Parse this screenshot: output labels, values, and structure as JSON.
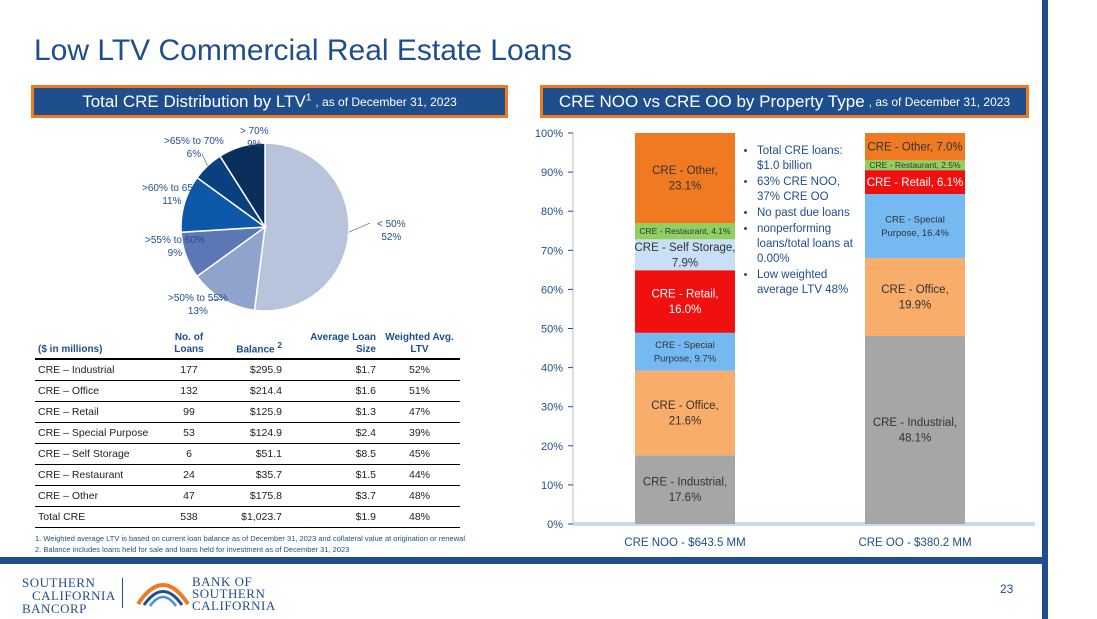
{
  "title": "Low LTV Commercial Real Estate Loans",
  "left_header": {
    "main": "Total CRE Distribution by LTV",
    "sup": "1",
    "sub": ", as of December 31, 2023"
  },
  "right_header": {
    "main": "CRE NOO vs CRE OO by Property Type",
    "sub": ", as of December 31, 2023"
  },
  "pie": {
    "slices": [
      {
        "label": "< 50%",
        "pct": "52%",
        "value": 52,
        "color": "#b8c4dc"
      },
      {
        "label": ">50% to 55%",
        "pct": "13%",
        "value": 13,
        "color": "#8fa3cd"
      },
      {
        "label": ">55% to 60%",
        "pct": "9%",
        "value": 9,
        "color": "#5b77b6"
      },
      {
        "label": ">60% to 65%",
        "pct": "11%",
        "value": 11,
        "color": "#0d58a8"
      },
      {
        "label": ">65% to 70%",
        "pct": "6%",
        "value": 6,
        "color": "#0a3f80"
      },
      {
        "label": "> 70%",
        "pct": "9%",
        "value": 9,
        "color": "#0b2f5c"
      }
    ]
  },
  "table": {
    "headers": {
      "category": "($ in millions)",
      "count": "No. of Loans",
      "balance": "Balance",
      "balance_sup": "2",
      "avg": "Average Loan Size",
      "ltv": "Weighted Avg. LTV"
    },
    "rows": [
      {
        "name": "CRE – Industrial",
        "count": "177",
        "balance": "$295.9",
        "avg": "$1.7",
        "ltv": "52%"
      },
      {
        "name": "CRE – Office",
        "count": "132",
        "balance": "$214.4",
        "avg": "$1.6",
        "ltv": "51%"
      },
      {
        "name": "CRE – Retail",
        "count": "99",
        "balance": "$125.9",
        "avg": "$1.3",
        "ltv": "47%"
      },
      {
        "name": "CRE – Special Purpose",
        "count": "53",
        "balance": "$124.9",
        "avg": "$2.4",
        "ltv": "39%"
      },
      {
        "name": "CRE – Self Storage",
        "count": "6",
        "balance": "$51.1",
        "avg": "$8.5",
        "ltv": "45%"
      },
      {
        "name": "CRE – Restaurant",
        "count": "24",
        "balance": "$35.7",
        "avg": "$1.5",
        "ltv": "44%"
      },
      {
        "name": "CRE – Other",
        "count": "47",
        "balance": "$175.8",
        "avg": "$3.7",
        "ltv": "48%"
      },
      {
        "name": "Total CRE",
        "count": "538",
        "balance": "$1,023.7",
        "avg": "$1.9",
        "ltv": "48%"
      }
    ]
  },
  "footnotes": [
    "1. Weighted average LTV is based on current loan balance as of December 31, 2023 and collateral value at origination or renewal",
    "2. Balance includes loans held for sale and loans held for investment as of December 31, 2023"
  ],
  "chart_data": {
    "type": "bar",
    "stacked": true,
    "categories": [
      "CRE NOO - $643.5 MM",
      "CRE OO - $380.2 MM"
    ],
    "ylim": [
      0,
      100
    ],
    "yticks": [
      "0%",
      "10%",
      "20%",
      "30%",
      "40%",
      "50%",
      "60%",
      "70%",
      "80%",
      "90%",
      "100%"
    ],
    "series": [
      {
        "name": "CRE - Industrial",
        "color": "#a6a6a6",
        "values": [
          17.6,
          48.1
        ],
        "labels": [
          "CRE - Industrial,|17.6%",
          "CRE - Industrial,|48.1%"
        ]
      },
      {
        "name": "CRE - Office",
        "color": "#f9ad6a",
        "values": [
          21.6,
          19.9
        ],
        "labels": [
          "CRE - Office,|21.6%",
          "CRE - Office,|19.9%"
        ]
      },
      {
        "name": "CRE - Special Purpose",
        "color": "#74b9f2",
        "values": [
          9.7,
          16.4
        ],
        "labels": [
          "CRE - Special|Purpose, 9.7%",
          "CRE - Special|Purpose, 16.4%"
        ]
      },
      {
        "name": "CRE - Retail",
        "color": "#f01010",
        "values": [
          16.0,
          6.1
        ],
        "labels": [
          "CRE - Retail,|16.0%",
          "CRE - Retail, 6.1%"
        ]
      },
      {
        "name": "CRE - Self Storage",
        "color": "#c9dff6",
        "values": [
          7.9,
          0
        ],
        "labels": [
          "CRE - Self Storage,|7.9%",
          ""
        ]
      },
      {
        "name": "CRE - Restaurant",
        "color": "#8fd160",
        "values": [
          4.1,
          2.5
        ],
        "labels": [
          "CRE - Restaurant, 4.1%",
          "CRE - Restaurant, 2.5%"
        ]
      },
      {
        "name": "CRE - Other",
        "color": "#f07a21",
        "values": [
          23.1,
          7.0
        ],
        "labels": [
          "CRE - Other,|23.1%",
          "CRE - Other, 7.0%"
        ]
      }
    ]
  },
  "bullets": [
    "Total CRE loans: $1.0 billion",
    "63% CRE NOO, 37% CRE OO",
    "No past due loans",
    "nonperforming loans/total loans at 0.00%",
    "Low weighted average LTV 48%"
  ],
  "logos": {
    "left": [
      "SOUTHERN",
      "CALIFORNIA",
      "BANCORP"
    ],
    "right": [
      "BANK OF",
      "SOUTHERN",
      "CALIFORNIA"
    ]
  },
  "page_number": "23"
}
